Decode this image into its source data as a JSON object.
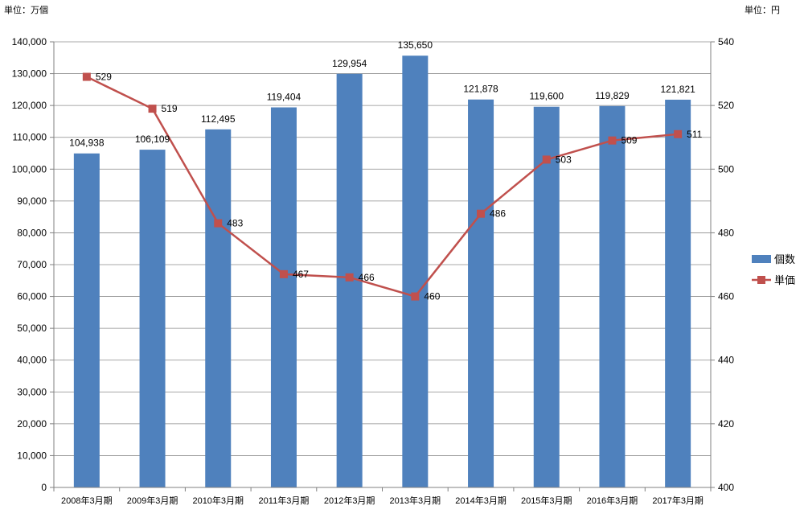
{
  "units": {
    "left": "単位：万個",
    "right": "単位：円"
  },
  "chart_data": {
    "type": "bar+line",
    "categories": [
      "2008年3月期",
      "2009年3月期",
      "2010年3月期",
      "2011年3月期",
      "2012年3月期",
      "2013年3月期",
      "2014年3月期",
      "2015年3月期",
      "2016年3月期",
      "2017年3月期"
    ],
    "series": [
      {
        "name": "個数",
        "type": "bar",
        "axis": "left",
        "color": "#4f81bd",
        "values": [
          104938,
          106109,
          112495,
          119404,
          129954,
          135650,
          121878,
          119600,
          119829,
          121821
        ],
        "labels": [
          "104,938",
          "106,109",
          "112,495",
          "119,404",
          "129,954",
          "135,650",
          "121,878",
          "119,600",
          "119,829",
          "121,821"
        ]
      },
      {
        "name": "単価",
        "type": "line",
        "axis": "right",
        "color": "#c0504d",
        "values": [
          529,
          519,
          483,
          467,
          466,
          460,
          486,
          503,
          509,
          511
        ],
        "labels": [
          "529",
          "519",
          "483",
          "467",
          "466",
          "460",
          "486",
          "503",
          "509",
          "511"
        ]
      }
    ],
    "y_left": {
      "min": 0,
      "max": 140000,
      "step": 10000,
      "tick_labels": [
        "0",
        "10,000",
        "20,000",
        "30,000",
        "40,000",
        "50,000",
        "60,000",
        "70,000",
        "80,000",
        "90,000",
        "100,000",
        "110,000",
        "120,000",
        "130,000",
        "140,000"
      ]
    },
    "y_right": {
      "min": 400,
      "max": 540,
      "step": 20,
      "tick_labels": [
        "400",
        "420",
        "440",
        "460",
        "480",
        "500",
        "520",
        "540"
      ]
    },
    "grid": true,
    "legend_position": "right"
  }
}
